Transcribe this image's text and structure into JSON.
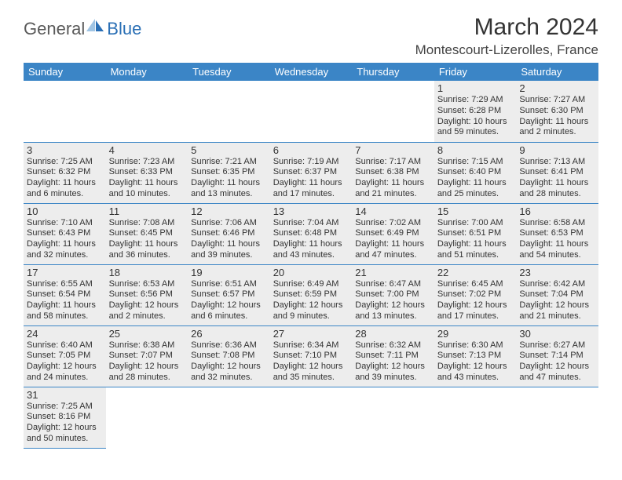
{
  "logo": {
    "text1": "General",
    "text2": "Blue"
  },
  "title": "March 2024",
  "location": "Montescourt-Lizerolles, France",
  "colors": {
    "header_bg": "#3b85c6",
    "header_fg": "#ffffff",
    "shaded_bg": "#ededed",
    "rule": "#3b85c6",
    "logo_gray": "#5a5a5a",
    "logo_blue": "#2a6fb5"
  },
  "weekdays": [
    "Sunday",
    "Monday",
    "Tuesday",
    "Wednesday",
    "Thursday",
    "Friday",
    "Saturday"
  ],
  "weeks": [
    [
      {
        "empty": true
      },
      {
        "empty": true
      },
      {
        "empty": true
      },
      {
        "empty": true
      },
      {
        "empty": true
      },
      {
        "num": "1",
        "shaded": true,
        "sunrise": "Sunrise: 7:29 AM",
        "sunset": "Sunset: 6:28 PM",
        "daylight": "Daylight: 10 hours and 59 minutes."
      },
      {
        "num": "2",
        "shaded": true,
        "sunrise": "Sunrise: 7:27 AM",
        "sunset": "Sunset: 6:30 PM",
        "daylight": "Daylight: 11 hours and 2 minutes."
      }
    ],
    [
      {
        "num": "3",
        "shaded": true,
        "sunrise": "Sunrise: 7:25 AM",
        "sunset": "Sunset: 6:32 PM",
        "daylight": "Daylight: 11 hours and 6 minutes."
      },
      {
        "num": "4",
        "shaded": true,
        "sunrise": "Sunrise: 7:23 AM",
        "sunset": "Sunset: 6:33 PM",
        "daylight": "Daylight: 11 hours and 10 minutes."
      },
      {
        "num": "5",
        "shaded": true,
        "sunrise": "Sunrise: 7:21 AM",
        "sunset": "Sunset: 6:35 PM",
        "daylight": "Daylight: 11 hours and 13 minutes."
      },
      {
        "num": "6",
        "shaded": true,
        "sunrise": "Sunrise: 7:19 AM",
        "sunset": "Sunset: 6:37 PM",
        "daylight": "Daylight: 11 hours and 17 minutes."
      },
      {
        "num": "7",
        "shaded": true,
        "sunrise": "Sunrise: 7:17 AM",
        "sunset": "Sunset: 6:38 PM",
        "daylight": "Daylight: 11 hours and 21 minutes."
      },
      {
        "num": "8",
        "shaded": true,
        "sunrise": "Sunrise: 7:15 AM",
        "sunset": "Sunset: 6:40 PM",
        "daylight": "Daylight: 11 hours and 25 minutes."
      },
      {
        "num": "9",
        "shaded": true,
        "sunrise": "Sunrise: 7:13 AM",
        "sunset": "Sunset: 6:41 PM",
        "daylight": "Daylight: 11 hours and 28 minutes."
      }
    ],
    [
      {
        "num": "10",
        "shaded": true,
        "sunrise": "Sunrise: 7:10 AM",
        "sunset": "Sunset: 6:43 PM",
        "daylight": "Daylight: 11 hours and 32 minutes."
      },
      {
        "num": "11",
        "shaded": true,
        "sunrise": "Sunrise: 7:08 AM",
        "sunset": "Sunset: 6:45 PM",
        "daylight": "Daylight: 11 hours and 36 minutes."
      },
      {
        "num": "12",
        "shaded": true,
        "sunrise": "Sunrise: 7:06 AM",
        "sunset": "Sunset: 6:46 PM",
        "daylight": "Daylight: 11 hours and 39 minutes."
      },
      {
        "num": "13",
        "shaded": true,
        "sunrise": "Sunrise: 7:04 AM",
        "sunset": "Sunset: 6:48 PM",
        "daylight": "Daylight: 11 hours and 43 minutes."
      },
      {
        "num": "14",
        "shaded": true,
        "sunrise": "Sunrise: 7:02 AM",
        "sunset": "Sunset: 6:49 PM",
        "daylight": "Daylight: 11 hours and 47 minutes."
      },
      {
        "num": "15",
        "shaded": true,
        "sunrise": "Sunrise: 7:00 AM",
        "sunset": "Sunset: 6:51 PM",
        "daylight": "Daylight: 11 hours and 51 minutes."
      },
      {
        "num": "16",
        "shaded": true,
        "sunrise": "Sunrise: 6:58 AM",
        "sunset": "Sunset: 6:53 PM",
        "daylight": "Daylight: 11 hours and 54 minutes."
      }
    ],
    [
      {
        "num": "17",
        "shaded": true,
        "sunrise": "Sunrise: 6:55 AM",
        "sunset": "Sunset: 6:54 PM",
        "daylight": "Daylight: 11 hours and 58 minutes."
      },
      {
        "num": "18",
        "shaded": true,
        "sunrise": "Sunrise: 6:53 AM",
        "sunset": "Sunset: 6:56 PM",
        "daylight": "Daylight: 12 hours and 2 minutes."
      },
      {
        "num": "19",
        "shaded": true,
        "sunrise": "Sunrise: 6:51 AM",
        "sunset": "Sunset: 6:57 PM",
        "daylight": "Daylight: 12 hours and 6 minutes."
      },
      {
        "num": "20",
        "shaded": true,
        "sunrise": "Sunrise: 6:49 AM",
        "sunset": "Sunset: 6:59 PM",
        "daylight": "Daylight: 12 hours and 9 minutes."
      },
      {
        "num": "21",
        "shaded": true,
        "sunrise": "Sunrise: 6:47 AM",
        "sunset": "Sunset: 7:00 PM",
        "daylight": "Daylight: 12 hours and 13 minutes."
      },
      {
        "num": "22",
        "shaded": true,
        "sunrise": "Sunrise: 6:45 AM",
        "sunset": "Sunset: 7:02 PM",
        "daylight": "Daylight: 12 hours and 17 minutes."
      },
      {
        "num": "23",
        "shaded": true,
        "sunrise": "Sunrise: 6:42 AM",
        "sunset": "Sunset: 7:04 PM",
        "daylight": "Daylight: 12 hours and 21 minutes."
      }
    ],
    [
      {
        "num": "24",
        "shaded": true,
        "sunrise": "Sunrise: 6:40 AM",
        "sunset": "Sunset: 7:05 PM",
        "daylight": "Daylight: 12 hours and 24 minutes."
      },
      {
        "num": "25",
        "shaded": true,
        "sunrise": "Sunrise: 6:38 AM",
        "sunset": "Sunset: 7:07 PM",
        "daylight": "Daylight: 12 hours and 28 minutes."
      },
      {
        "num": "26",
        "shaded": true,
        "sunrise": "Sunrise: 6:36 AM",
        "sunset": "Sunset: 7:08 PM",
        "daylight": "Daylight: 12 hours and 32 minutes."
      },
      {
        "num": "27",
        "shaded": true,
        "sunrise": "Sunrise: 6:34 AM",
        "sunset": "Sunset: 7:10 PM",
        "daylight": "Daylight: 12 hours and 35 minutes."
      },
      {
        "num": "28",
        "shaded": true,
        "sunrise": "Sunrise: 6:32 AM",
        "sunset": "Sunset: 7:11 PM",
        "daylight": "Daylight: 12 hours and 39 minutes."
      },
      {
        "num": "29",
        "shaded": true,
        "sunrise": "Sunrise: 6:30 AM",
        "sunset": "Sunset: 7:13 PM",
        "daylight": "Daylight: 12 hours and 43 minutes."
      },
      {
        "num": "30",
        "shaded": true,
        "sunrise": "Sunrise: 6:27 AM",
        "sunset": "Sunset: 7:14 PM",
        "daylight": "Daylight: 12 hours and 47 minutes."
      }
    ],
    [
      {
        "num": "31",
        "shaded": true,
        "sunrise": "Sunrise: 7:25 AM",
        "sunset": "Sunset: 8:16 PM",
        "daylight": "Daylight: 12 hours and 50 minutes."
      },
      {
        "blank": true
      },
      {
        "blank": true
      },
      {
        "blank": true
      },
      {
        "blank": true
      },
      {
        "blank": true
      },
      {
        "blank": true
      }
    ]
  ]
}
